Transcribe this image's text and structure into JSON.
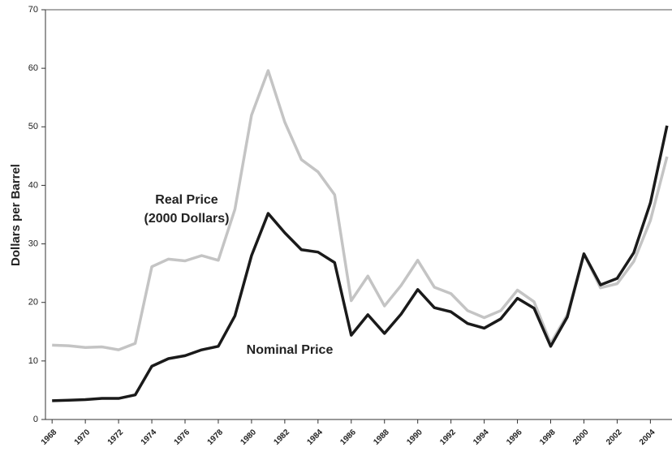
{
  "chart_data": {
    "type": "line",
    "y_label": "Dollars per Barrel",
    "annotations": [
      "Real Price",
      "(2000 Dollars)",
      "Nominal Price"
    ],
    "x": [
      1968,
      1969,
      1970,
      1971,
      1972,
      1973,
      1974,
      1975,
      1976,
      1977,
      1978,
      1979,
      1980,
      1981,
      1982,
      1983,
      1984,
      1985,
      1986,
      1987,
      1988,
      1989,
      1990,
      1991,
      1992,
      1993,
      1994,
      1995,
      1996,
      1997,
      1998,
      1999,
      2000,
      2001,
      2002,
      2003,
      2004,
      2005
    ],
    "series": [
      {
        "name": "Real Price (2000 Dollars)",
        "color": "#c4c4c4",
        "values": [
          12.7,
          12.6,
          12.3,
          12.4,
          11.9,
          13.0,
          26.1,
          27.4,
          27.1,
          28.0,
          27.2,
          35.9,
          52.0,
          59.6,
          50.8,
          44.4,
          42.3,
          38.4,
          20.3,
          24.5,
          19.4,
          22.9,
          27.2,
          22.6,
          21.5,
          18.6,
          17.4,
          18.6,
          22.1,
          20.1,
          13.0,
          17.9,
          28.3,
          22.5,
          23.2,
          27.0,
          34.0,
          44.9
        ]
      },
      {
        "name": "Nominal Price",
        "color": "#1a1a1a",
        "values": [
          3.2,
          3.3,
          3.4,
          3.6,
          3.6,
          4.2,
          9.1,
          10.4,
          10.9,
          11.9,
          12.5,
          17.7,
          28.0,
          35.2,
          31.9,
          29.0,
          28.6,
          26.8,
          14.4,
          17.9,
          14.7,
          18.0,
          22.2,
          19.1,
          18.4,
          16.4,
          15.6,
          17.2,
          20.7,
          19.0,
          12.5,
          17.5,
          28.3,
          23.0,
          24.1,
          28.5,
          37.0,
          50.2
        ]
      }
    ],
    "xlim": [
      1967.6,
      2005.3
    ],
    "xticks": [
      1968,
      1970,
      1972,
      1974,
      1976,
      1978,
      1980,
      1982,
      1984,
      1986,
      1988,
      1990,
      1992,
      1994,
      1996,
      1998,
      2000,
      2002,
      2004
    ],
    "ylim": [
      0,
      70
    ],
    "yticks": [
      0,
      10,
      20,
      30,
      40,
      50,
      60,
      70
    ]
  }
}
